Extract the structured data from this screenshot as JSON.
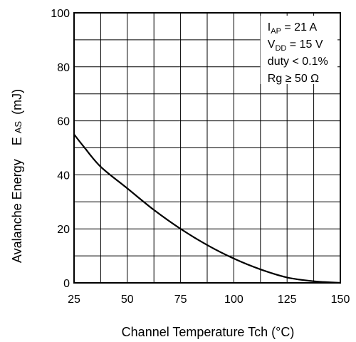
{
  "chart_data": {
    "type": "line",
    "title": "",
    "xlabel": "Channel Temperature   Tch  (°C)",
    "ylabel": "Avalanche Energy   EAS (mJ)",
    "ylabel_parts": {
      "main": "Avalanche Energy",
      "symbol_E": "E",
      "symbol_sub": "AS",
      "unit": "(mJ)"
    },
    "xlim": [
      25,
      150
    ],
    "ylim": [
      0,
      100
    ],
    "x_ticks": [
      25,
      50,
      75,
      100,
      125,
      150
    ],
    "y_ticks": [
      0,
      20,
      40,
      60,
      80,
      100
    ],
    "grid": true,
    "grid_step_x": 12.5,
    "grid_step_y": 10,
    "series": [
      {
        "x": [
          25,
          30,
          37.5,
          50,
          62.5,
          75,
          87.5,
          100,
          112.5,
          125,
          137.5,
          150
        ],
        "y": [
          55,
          50,
          43,
          35,
          27,
          20,
          14,
          9,
          5,
          2,
          0.6,
          0
        ],
        "color": "#000000"
      }
    ],
    "annotations": [
      {
        "main": "I",
        "sub": "AP",
        "rest": " = 21 A"
      },
      {
        "main": "V",
        "sub": "DD",
        "rest": " = 15 V"
      },
      {
        "main": "duty < 0.1%",
        "sub": "",
        "rest": ""
      },
      {
        "main": "Rg ≥ 50 Ω",
        "sub": "",
        "rest": ""
      }
    ]
  }
}
